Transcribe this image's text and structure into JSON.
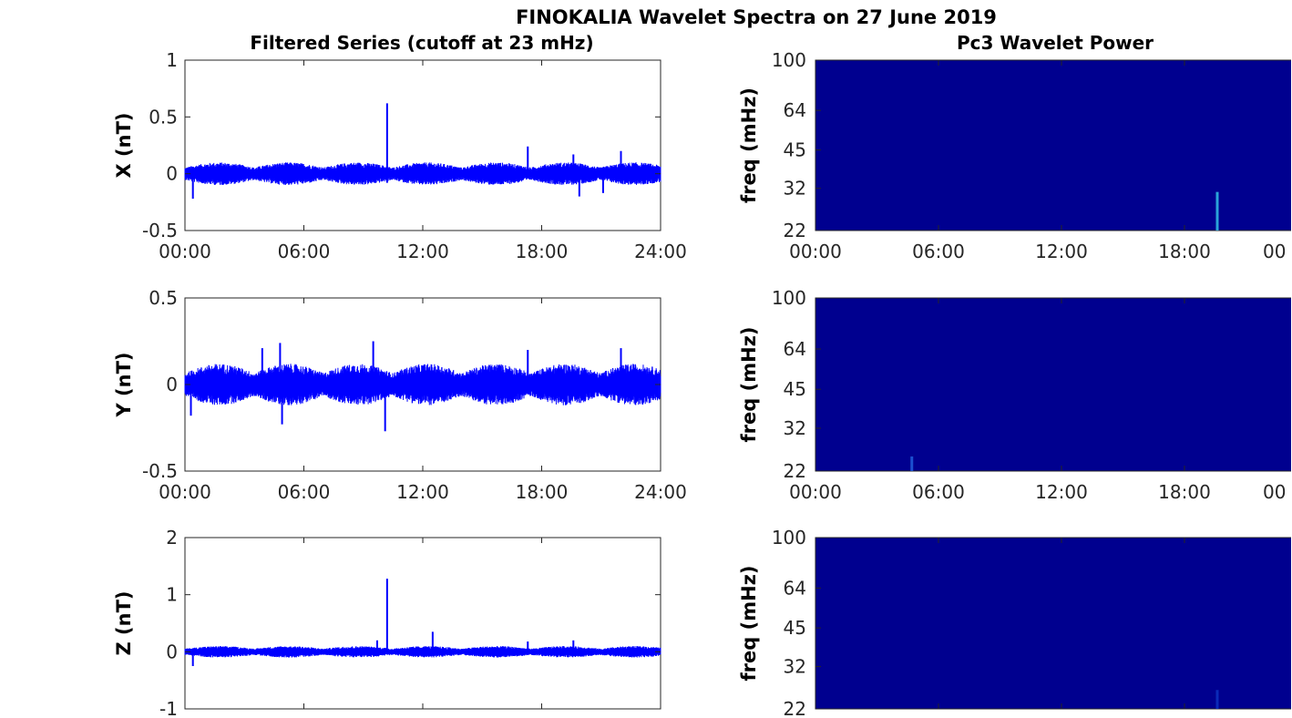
{
  "figure": {
    "title": "FINOKALIA Wavelet Spectra on 27 June 2019",
    "left_column_title": "Filtered Series (cutoff at 23 mHz)",
    "right_column_title": "Pc3 Wavelet Power"
  },
  "colors": {
    "series": "#0000ff",
    "spectrogram_background": "#00008f",
    "axis": "#262626"
  },
  "chart_data": [
    {
      "type": "line",
      "id": "x",
      "ylabel": "X (nT)",
      "ylim": [
        -0.5,
        1
      ],
      "yticks": [
        "-0.5",
        "0",
        "0.5",
        "1"
      ],
      "ytick_values": [
        -0.5,
        0,
        0.5,
        1
      ],
      "xlim_hours": [
        0,
        24
      ],
      "xticks": [
        "00:00",
        "06:00",
        "12:00",
        "18:00",
        "24:00"
      ],
      "series_color": "#0000ff",
      "noise_band": [
        -0.1,
        0.1
      ],
      "spikes": [
        {
          "t": 10.2,
          "v": 0.62
        },
        {
          "t": 10.2,
          "v": -0.08
        },
        {
          "t": 17.3,
          "v": 0.24
        },
        {
          "t": 19.6,
          "v": 0.17
        },
        {
          "t": 19.9,
          "v": -0.2
        },
        {
          "t": 22.0,
          "v": 0.2
        },
        {
          "t": 0.4,
          "v": -0.22
        },
        {
          "t": 21.1,
          "v": -0.17
        }
      ]
    },
    {
      "type": "line",
      "id": "y",
      "ylabel": "Y (nT)",
      "ylim": [
        -0.5,
        0.5
      ],
      "yticks": [
        "-0.5",
        "0",
        "0.5"
      ],
      "ytick_values": [
        -0.5,
        0,
        0.5
      ],
      "xlim_hours": [
        0,
        24
      ],
      "xticks": [
        "00:00",
        "06:00",
        "12:00",
        "18:00",
        "24:00"
      ],
      "series_color": "#0000ff",
      "noise_band": [
        -0.12,
        0.12
      ],
      "spikes": [
        {
          "t": 9.5,
          "v": 0.25
        },
        {
          "t": 10.1,
          "v": -0.27
        },
        {
          "t": 4.8,
          "v": 0.24
        },
        {
          "t": 4.9,
          "v": -0.23
        },
        {
          "t": 3.9,
          "v": 0.21
        },
        {
          "t": 17.3,
          "v": 0.2
        },
        {
          "t": 22.0,
          "v": 0.21
        },
        {
          "t": 0.3,
          "v": -0.18
        }
      ]
    },
    {
      "type": "line",
      "id": "z",
      "ylabel": "Z (nT)",
      "ylim": [
        -1,
        2
      ],
      "yticks": [
        "-1",
        "0",
        "1",
        "2"
      ],
      "ytick_values": [
        -1,
        0,
        1,
        2
      ],
      "xlim_hours": [
        0,
        24
      ],
      "xticks": [
        "",
        "",
        "",
        "",
        ""
      ],
      "series_color": "#0000ff",
      "noise_band": [
        -0.1,
        0.1
      ],
      "spikes": [
        {
          "t": 10.2,
          "v": 1.28
        },
        {
          "t": 12.5,
          "v": 0.35
        },
        {
          "t": 9.7,
          "v": 0.2
        },
        {
          "t": 0.4,
          "v": -0.25
        },
        {
          "t": 17.3,
          "v": 0.18
        },
        {
          "t": 19.6,
          "v": 0.2
        }
      ]
    },
    {
      "type": "heatmap",
      "id": "px",
      "ylabel": "freq (mHz)",
      "yticks": [
        "22",
        "32",
        "45",
        "64",
        "100"
      ],
      "ytick_values": [
        22,
        32,
        45,
        64,
        100
      ],
      "ylim": [
        22,
        100
      ],
      "log_scale_y": true,
      "xlim_hours": [
        0,
        24
      ],
      "xticks": [
        "00:00",
        "06:00",
        "12:00",
        "18:00",
        "00"
      ],
      "xtick_values": [
        0,
        6,
        12,
        18,
        24
      ],
      "background": "#00008f",
      "highlights": [
        {
          "t": 19.6,
          "f_low": 22,
          "f_high": 31,
          "color": "#2aa3d9"
        }
      ]
    },
    {
      "type": "heatmap",
      "id": "py",
      "ylabel": "freq (mHz)",
      "yticks": [
        "22",
        "32",
        "45",
        "64",
        "100"
      ],
      "ytick_values": [
        22,
        32,
        45,
        64,
        100
      ],
      "ylim": [
        22,
        100
      ],
      "log_scale_y": true,
      "xlim_hours": [
        0,
        24
      ],
      "xticks": [
        "00:00",
        "06:00",
        "12:00",
        "18:00",
        "00"
      ],
      "xtick_values": [
        0,
        6,
        12,
        18,
        24
      ],
      "background": "#00008f",
      "highlights": [
        {
          "t": 4.7,
          "f_low": 22,
          "f_high": 25,
          "color": "#1a4fd0"
        }
      ]
    },
    {
      "type": "heatmap",
      "id": "pz",
      "ylabel": "freq (mHz)",
      "yticks": [
        "22",
        "32",
        "45",
        "64",
        "100"
      ],
      "ytick_values": [
        22,
        32,
        45,
        64,
        100
      ],
      "ylim": [
        22,
        100
      ],
      "log_scale_y": true,
      "xlim_hours": [
        0,
        24
      ],
      "xticks": [
        "",
        "",
        "",
        "",
        ""
      ],
      "xtick_values": [
        0,
        6,
        12,
        18,
        24
      ],
      "background": "#00008f",
      "highlights": [
        {
          "t": 19.6,
          "f_low": 22,
          "f_high": 26,
          "color": "#0a2ab8"
        }
      ]
    }
  ]
}
